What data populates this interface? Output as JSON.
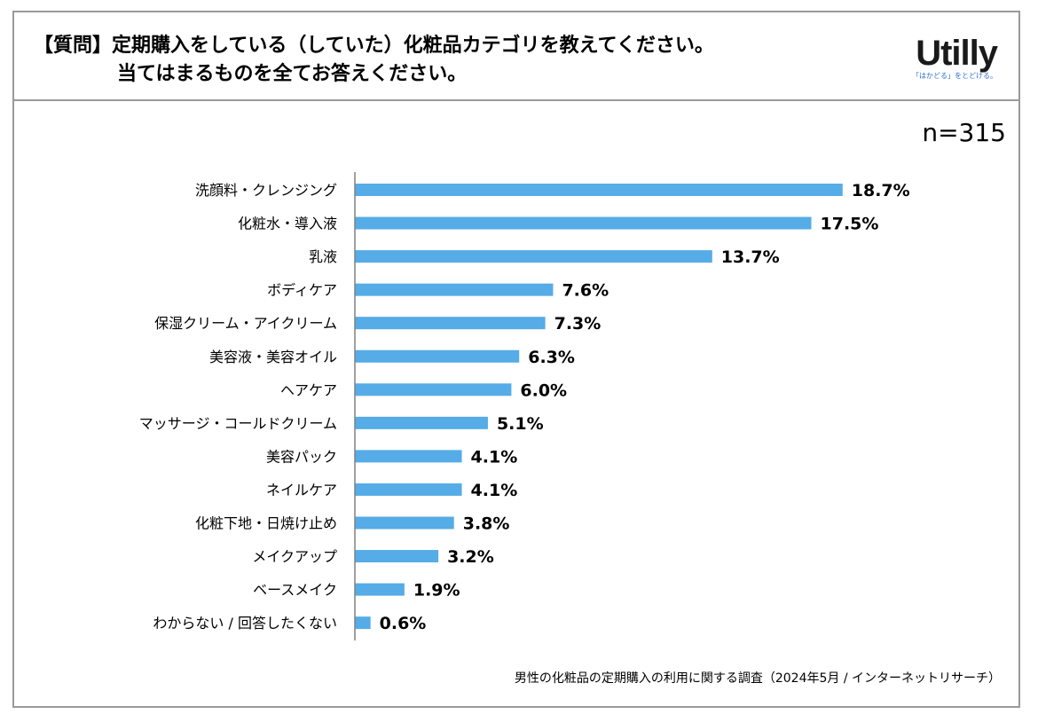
{
  "header": {
    "title_line1": "【質問】定期購入をしている（していた）化粧品カテゴリを教えてください。",
    "title_line2": "当てはまるものを全てお答えください。"
  },
  "logo": {
    "wordmark": "Utilly",
    "tagline": "「はかどる」をとどける。"
  },
  "sample_size": "n=315",
  "footnote": "男性の化粧品の定期購入の利用に関する調査（2024年5月 / インターネットリサーチ）",
  "colors": {
    "bar": "#55ace6",
    "axis": "#808080",
    "border": "#9a9a9a"
  },
  "chart_data": {
    "type": "bar",
    "orientation": "horizontal",
    "title": "【質問】定期購入をしている（していた）化粧品カテゴリを教えてください。当てはまるものを全てお答えください。",
    "categories": [
      "洗顔料・クレンジング",
      "化粧水・導入液",
      "乳液",
      "ボディケア",
      "保湿クリーム・アイクリーム",
      "美容液・美容オイル",
      "ヘアケア",
      "マッサージ・コールドクリーム",
      "美容パック",
      "ネイルケア",
      "化粧下地・日焼け止め",
      "メイクアップ",
      "ベースメイク",
      "わからない / 回答したくない"
    ],
    "values": [
      18.7,
      17.5,
      13.7,
      7.6,
      7.3,
      6.3,
      6.0,
      5.1,
      4.1,
      4.1,
      3.8,
      3.2,
      1.9,
      0.6
    ],
    "value_labels": [
      "18.7%",
      "17.5%",
      "13.7%",
      "7.6%",
      "7.3%",
      "6.3%",
      "6.0%",
      "5.1%",
      "4.1%",
      "4.1%",
      "3.8%",
      "3.2%",
      "1.9%",
      "0.6%"
    ],
    "xlim": [
      0,
      20
    ],
    "unit": "%",
    "grid": false,
    "legend": "none"
  }
}
